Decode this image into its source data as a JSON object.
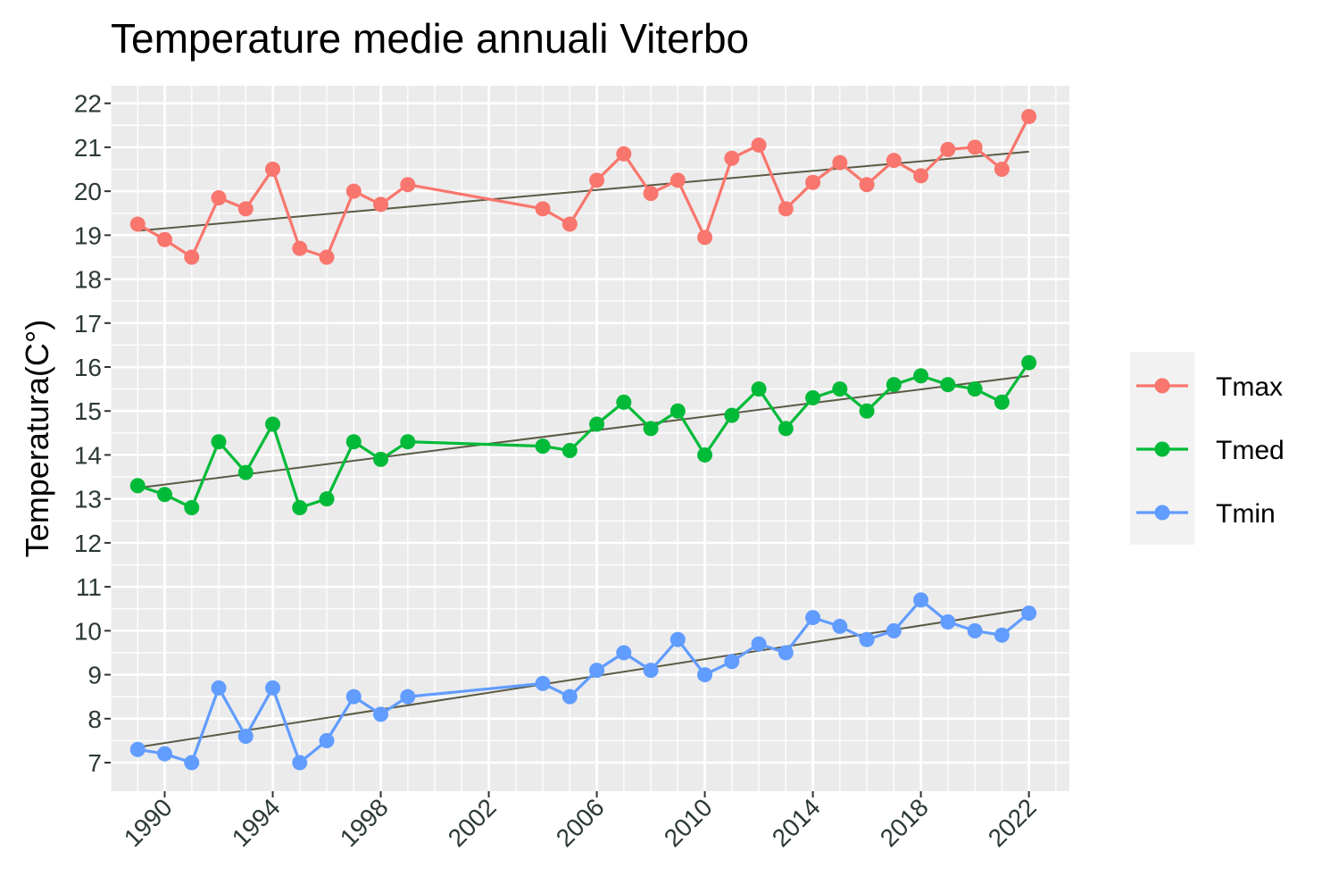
{
  "chart_data": {
    "type": "line",
    "title": "Temperature medie annuali Viterbo",
    "xlabel": "",
    "ylabel": "Temperatura(C°)",
    "xlim": [
      1988.0,
      2023.5
    ],
    "ylim": [
      6.35,
      22.4
    ],
    "x_ticks": [
      1990,
      1994,
      1998,
      2002,
      2006,
      2010,
      2014,
      2018,
      2022
    ],
    "y_ticks": [
      7,
      8,
      9,
      10,
      11,
      12,
      13,
      14,
      15,
      16,
      17,
      18,
      19,
      20,
      21,
      22
    ],
    "x": [
      1989,
      1990,
      1991,
      1992,
      1993,
      1994,
      1995,
      1996,
      1997,
      1998,
      1999,
      2004,
      2005,
      2006,
      2007,
      2008,
      2009,
      2010,
      2011,
      2012,
      2013,
      2014,
      2015,
      2016,
      2017,
      2018,
      2019,
      2020,
      2021,
      2022
    ],
    "series": [
      {
        "name": "Tmax",
        "color": "#F8766D",
        "values": [
          19.25,
          18.9,
          18.5,
          19.85,
          19.6,
          20.5,
          18.7,
          18.5,
          20.0,
          19.7,
          20.15,
          19.6,
          19.25,
          20.25,
          20.85,
          19.95,
          20.25,
          18.95,
          20.75,
          21.05,
          19.6,
          20.2,
          20.65,
          20.15,
          20.7,
          20.35,
          20.95,
          21.0,
          20.5,
          21.7
        ],
        "trend": [
          19.1,
          20.9
        ]
      },
      {
        "name": "Tmed",
        "color": "#00BA38",
        "values": [
          13.3,
          13.1,
          12.8,
          14.3,
          13.6,
          14.7,
          12.8,
          13.0,
          14.3,
          13.9,
          14.3,
          14.2,
          14.1,
          14.7,
          15.2,
          14.6,
          15.0,
          14.0,
          14.9,
          15.5,
          14.6,
          15.3,
          15.5,
          15.0,
          15.6,
          15.8,
          15.6,
          15.5,
          15.2,
          16.1
        ],
        "trend": [
          13.25,
          15.8
        ]
      },
      {
        "name": "Tmin",
        "color": "#619CFF",
        "values": [
          7.3,
          7.2,
          7.0,
          8.7,
          7.6,
          8.7,
          7.0,
          7.5,
          8.5,
          8.1,
          8.5,
          8.8,
          8.5,
          9.1,
          9.5,
          9.1,
          9.8,
          9.0,
          9.3,
          9.7,
          9.5,
          10.3,
          10.1,
          9.8,
          10.0,
          10.7,
          10.2,
          10.0,
          9.9,
          10.4
        ],
        "trend": [
          7.35,
          10.5
        ]
      }
    ],
    "trend_color": "#5c5a44",
    "panel_background": "#ebebeb",
    "grid": true,
    "legend_position": "right"
  }
}
